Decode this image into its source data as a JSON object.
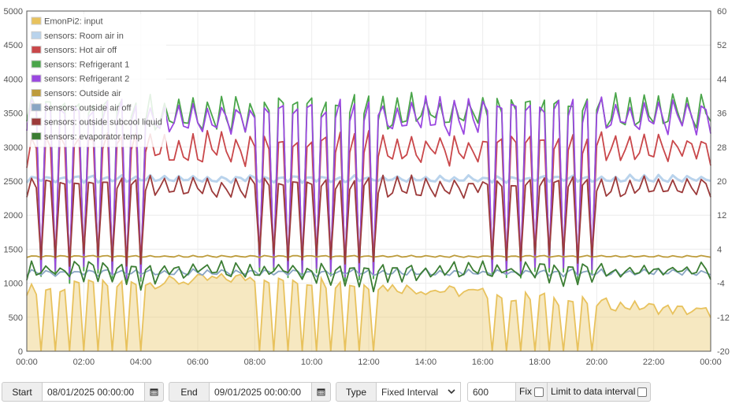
{
  "chart_data": {
    "type": "area",
    "x_ticks": [
      "00:00",
      "02:00",
      "04:00",
      "06:00",
      "08:00",
      "10:00",
      "12:00",
      "14:00",
      "16:00",
      "18:00",
      "20:00",
      "22:00",
      "00:00"
    ],
    "x_range_hours": [
      0,
      24
    ],
    "y_left": {
      "range": [
        0,
        5000
      ],
      "ticks": [
        0,
        500,
        1000,
        1500,
        2000,
        2500,
        3000,
        3500,
        4000,
        4500,
        5000
      ]
    },
    "y_right": {
      "range": [
        -20,
        60
      ],
      "ticks": [
        -20,
        -12,
        -4,
        4,
        12,
        20,
        28,
        36,
        44,
        52,
        60
      ]
    },
    "grid": true,
    "legend_position": "top-left",
    "series": [
      {
        "name": "EmonPi2: input",
        "color": "#e8c25d",
        "axis": "left",
        "style": "area",
        "baseline": 620,
        "amplitude": 330,
        "trend": [
          420,
          600,
          360,
          80
        ]
      },
      {
        "name": "sensors: Room air in",
        "color": "#b9d3ec",
        "axis": "right",
        "style": "line",
        "base": 20.5,
        "amp": 1.2,
        "peak_shift": 0.0
      },
      {
        "name": "sensors: Hot air off",
        "color": "#c9474a",
        "axis": "right",
        "style": "line",
        "base": 27.5,
        "amp": 5.5
      },
      {
        "name": "sensors: Refrigerant 1",
        "color": "#4aa54a",
        "axis": "right",
        "style": "line",
        "base": 36.0,
        "amp": 6.0
      },
      {
        "name": "sensors: Refrigerant 2",
        "color": "#9a48e0",
        "axis": "right",
        "style": "line",
        "base": 35.0,
        "amp": 6.0
      },
      {
        "name": "sensors: Outside air",
        "color": "#bd9c3c",
        "axis": "right",
        "style": "line",
        "base": 2.3,
        "amp": 0.3
      },
      {
        "name": "sensors: outside air off",
        "color": "#8aa5c4",
        "axis": "right",
        "style": "line",
        "base": -1.5,
        "amp": 1.2
      },
      {
        "name": "sensors: outside subcool liquid",
        "color": "#9c3a3a",
        "axis": "right",
        "style": "line",
        "base": 18.5,
        "amp": 3.5
      },
      {
        "name": "sensors: evaporator temp",
        "color": "#3b7d33",
        "axis": "right",
        "style": "line",
        "base": -4.0,
        "amp": 5.5
      }
    ],
    "cycles": 47,
    "dip_targets": {
      "Refrigerant 1": -4,
      "Refrigerant 2": -3,
      "Hot air off": 0,
      "outside subcool liquid": 0
    }
  },
  "controls": {
    "start_label": "Start",
    "start_value": "08/01/2025 00:00:00",
    "end_label": "End",
    "end_value": "09/01/2025 00:00:00",
    "type_label": "Type",
    "type_value": "Fixed Interval",
    "interval_value": "600",
    "fix_label": "Fix",
    "limit_label": "Limit to data interval"
  }
}
